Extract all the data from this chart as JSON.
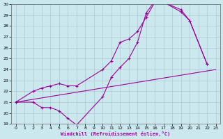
{
  "xlabel": "Windchill (Refroidissement éolien,°C)",
  "xlim": [
    -0.5,
    23.5
  ],
  "ylim": [
    19,
    30
  ],
  "xticks": [
    0,
    1,
    2,
    3,
    4,
    5,
    6,
    7,
    8,
    9,
    10,
    11,
    12,
    13,
    14,
    15,
    16,
    17,
    18,
    19,
    20,
    21,
    22,
    23
  ],
  "yticks": [
    19,
    20,
    21,
    22,
    23,
    24,
    25,
    26,
    27,
    28,
    29,
    30
  ],
  "bg_color": "#cce8ef",
  "grid_color": "#b0c8d0",
  "line_color": "#990099",
  "lines": [
    {
      "x": [
        0,
        23
      ],
      "y": [
        21.0,
        24.0
      ]
    },
    {
      "x": [
        0,
        2,
        3,
        4,
        5,
        6,
        7,
        10,
        11,
        12,
        13,
        14,
        15,
        16,
        17,
        19,
        20,
        22
      ],
      "y": [
        21.0,
        21.0,
        20.5,
        20.5,
        20.2,
        19.5,
        18.9,
        21.5,
        23.3,
        24.2,
        25.0,
        26.5,
        29.2,
        30.3,
        30.2,
        29.3,
        28.5,
        24.5
      ]
    },
    {
      "x": [
        0,
        2,
        3,
        4,
        5,
        6,
        7,
        10,
        11,
        12,
        13,
        14,
        15,
        16,
        17,
        19,
        20,
        22
      ],
      "y": [
        21.0,
        22.0,
        22.3,
        22.5,
        22.7,
        22.5,
        22.5,
        24.0,
        24.8,
        26.5,
        26.8,
        27.5,
        28.8,
        30.2,
        30.2,
        29.5,
        28.5,
        24.5
      ]
    }
  ]
}
